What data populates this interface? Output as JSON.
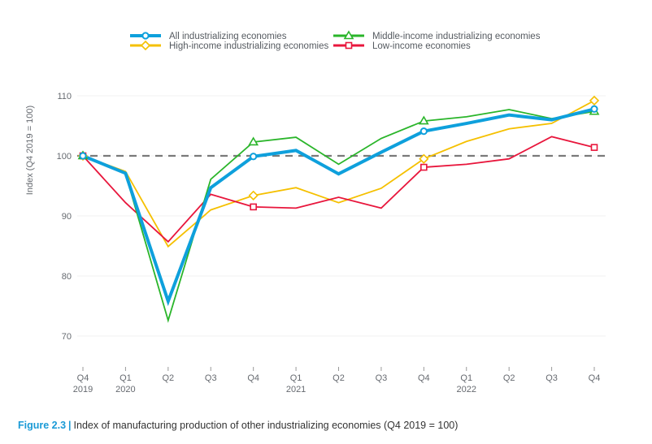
{
  "chart_data": {
    "type": "line",
    "title": "",
    "ylabel": "Index (Q4 2019 = 100)",
    "xlabel": "",
    "ylim": [
      70,
      110
    ],
    "yticks": [
      70,
      80,
      90,
      100,
      110
    ],
    "grid": true,
    "reference_line": {
      "y": 100,
      "style": "dashed",
      "color": "#7a7a7a"
    },
    "legend_position": "top-center",
    "x": [
      "Q4 2019",
      "Q1 2020",
      "Q2 2020",
      "Q3 2020",
      "Q4 2020",
      "Q1 2021",
      "Q2 2021",
      "Q3 2021",
      "Q4 2021",
      "Q1 2022",
      "Q2 2022",
      "Q3 2022",
      "Q4 2022"
    ],
    "xtick_labels": [
      {
        "q": "Q4",
        "year": "2019"
      },
      {
        "q": "Q1",
        "year": "2020"
      },
      {
        "q": "Q2",
        "year": ""
      },
      {
        "q": "Q3",
        "year": ""
      },
      {
        "q": "Q4",
        "year": ""
      },
      {
        "q": "Q1",
        "year": "2021"
      },
      {
        "q": "Q2",
        "year": ""
      },
      {
        "q": "Q3",
        "year": ""
      },
      {
        "q": "Q4",
        "year": ""
      },
      {
        "q": "Q1",
        "year": "2022"
      },
      {
        "q": "Q2",
        "year": ""
      },
      {
        "q": "Q3",
        "year": ""
      },
      {
        "q": "Q4",
        "year": ""
      }
    ],
    "series": [
      {
        "name": "High-income industrializing economies",
        "color": "#f5c000",
        "marker": "diamond",
        "values": [
          100,
          97.4,
          84.9,
          91.0,
          93.4,
          94.7,
          92.2,
          94.6,
          99.5,
          102.4,
          104.5,
          105.4,
          109.2
        ]
      },
      {
        "name": "Low-income economies",
        "color": "#e8163c",
        "marker": "square",
        "values": [
          100,
          92.2,
          85.7,
          93.6,
          91.5,
          91.3,
          93.1,
          91.3,
          98.1,
          98.6,
          99.5,
          103.2,
          101.4
        ]
      },
      {
        "name": "Middle-income industrializing economies",
        "color": "#2ab52a",
        "marker": "triangle",
        "values": [
          100,
          97.0,
          72.6,
          96.1,
          102.3,
          103.1,
          98.6,
          102.9,
          105.8,
          106.5,
          107.7,
          106.2,
          107.4
        ]
      },
      {
        "name": "All industrializing economies",
        "color": "#0ea0dc",
        "marker": "circle",
        "values": [
          100,
          97.1,
          75.8,
          94.7,
          99.9,
          100.9,
          97.0,
          100.6,
          104.1,
          105.4,
          106.8,
          106.0,
          107.8
        ]
      }
    ],
    "legend": [
      {
        "name": "All industrializing economies",
        "color": "#0ea0dc",
        "marker": "circle"
      },
      {
        "name": "Middle-income industrializing economies",
        "color": "#2ab52a",
        "marker": "triangle"
      },
      {
        "name": "High-income industrializing economies",
        "color": "#f5c000",
        "marker": "diamond"
      },
      {
        "name": "Low-income economies",
        "color": "#e8163c",
        "marker": "square"
      }
    ]
  },
  "caption": {
    "figure_label": "Figure 2.3",
    "separator": "|",
    "text": "Index of manufacturing production of other industrializing economies (Q4 2019 = 100)"
  }
}
